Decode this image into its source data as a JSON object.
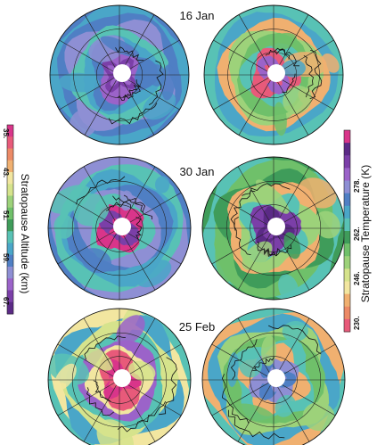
{
  "rows": [
    {
      "date": "16 Jan"
    },
    {
      "date": "30 Jan"
    },
    {
      "date": "25 Feb"
    }
  ],
  "colorbars": {
    "altitude": {
      "label": "Stratopause Altitude (km)",
      "ticks": [
        "35.",
        "43.",
        "51.",
        "59.",
        "67."
      ],
      "range": [
        35,
        67
      ]
    },
    "temperature": {
      "label": "Stratopause Temperature (K)",
      "ticks": [
        "230.",
        "246.",
        "262.",
        "278."
      ],
      "range": [
        230,
        290
      ]
    }
  },
  "palette": [
    "#5b2a86",
    "#7b3fa8",
    "#9b63c9",
    "#8e8fd4",
    "#4f7fc4",
    "#4aa6c8",
    "#58c2b5",
    "#3f9c5a",
    "#6fc06a",
    "#9dd27a",
    "#d6e38c",
    "#f2e6a0",
    "#f0b070",
    "#ec8a66",
    "#e85a7a",
    "#d9358a"
  ]
}
